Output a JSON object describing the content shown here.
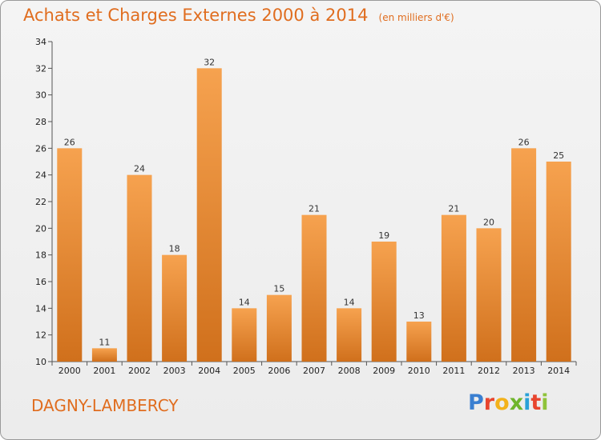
{
  "chart_data": {
    "type": "bar",
    "title": "Achats et Charges Externes 2000 à 2014",
    "subtitle": "(en milliers d'€)",
    "categories": [
      "2000",
      "2001",
      "2002",
      "2003",
      "2004",
      "2005",
      "2006",
      "2007",
      "2008",
      "2009",
      "2010",
      "2011",
      "2012",
      "2013",
      "2014"
    ],
    "values": [
      26,
      11,
      24,
      18,
      32,
      14,
      15,
      21,
      14,
      19,
      13,
      21,
      20,
      26,
      25
    ],
    "y_ticks": [
      10,
      12,
      14,
      16,
      18,
      20,
      22,
      24,
      26,
      28,
      30,
      32,
      34
    ],
    "ylim": [
      10,
      34
    ],
    "xlabel": "",
    "ylabel": "",
    "grid": false,
    "bar_color_top": "#f6a24f",
    "bar_color_bottom": "#d0701c"
  },
  "header": {
    "title": "Achats et Charges Externes 2000 à 2014",
    "unit": "(en milliers d'€)"
  },
  "footer": {
    "city": "DAGNY-LAMBERCY",
    "brand": [
      "P",
      "r",
      "o",
      "x",
      "i",
      "t",
      "i"
    ],
    "brand_colors": [
      "#3a7fd1",
      "#e8452e",
      "#f3b21b",
      "#6fb52c",
      "#2aa1d8",
      "#e8452e",
      "#8fc33a"
    ]
  }
}
